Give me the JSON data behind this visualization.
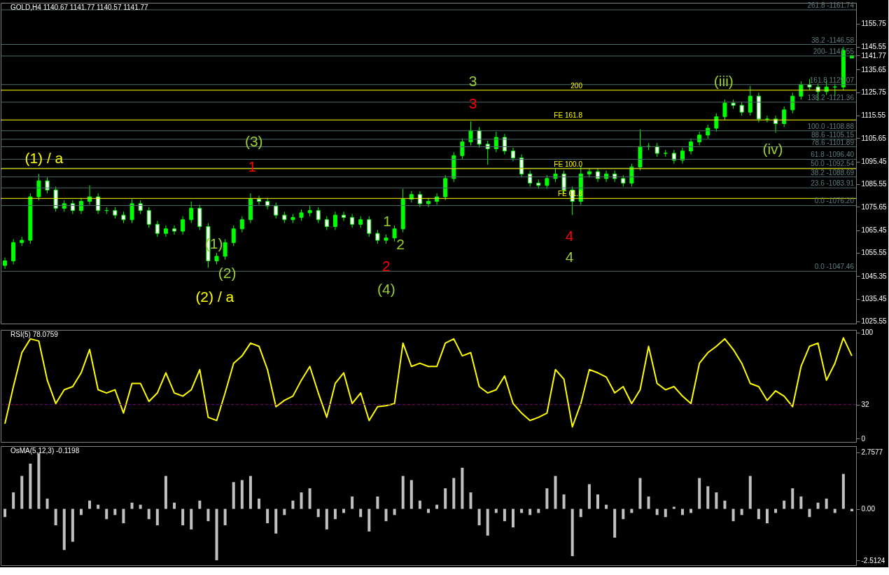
{
  "chart_data": [
    {
      "type": "candlestick",
      "title": "GOLD,H4  1140.67 1141.77 1140.57 1141.77",
      "color": "#00ff00",
      "tick_labels": "y",
      "grid": false,
      "categories": [
        null,
        null,
        null,
        null,
        null,
        null,
        null,
        null,
        null,
        null,
        null,
        null,
        null,
        null,
        null,
        null,
        null,
        null,
        null,
        null,
        null,
        null,
        null,
        null,
        null,
        null,
        null,
        null,
        null,
        null,
        null,
        null,
        null,
        null,
        null,
        null,
        null,
        null,
        null,
        null,
        null,
        null,
        null,
        null,
        null,
        null,
        null,
        null,
        null,
        null,
        null,
        null,
        null,
        null,
        null,
        null,
        null,
        null,
        null,
        null,
        null,
        null,
        null,
        null,
        null,
        null,
        null,
        null,
        null,
        null,
        null,
        null,
        null,
        null,
        null,
        null,
        null,
        null,
        null,
        null,
        null,
        null,
        null,
        null,
        null,
        null,
        null,
        null,
        null,
        null,
        null,
        null,
        null,
        null,
        null,
        null,
        null,
        null,
        null,
        null,
        null
      ],
      "ohlc": [
        [
          1050,
          1053.5,
          1048.5,
          1052
        ],
        [
          1052,
          1061.5,
          1050.5,
          1060
        ],
        [
          1060,
          1062.5,
          1058.5,
          1061
        ],
        [
          1061,
          1081.5,
          1059.5,
          1080
        ],
        [
          1080,
          1090,
          1078.5,
          1087
        ],
        [
          1087,
          1088.5,
          1081.5,
          1083
        ],
        [
          1083,
          1084.5,
          1073.5,
          1075
        ],
        [
          1075,
          1078.5,
          1073.5,
          1077
        ],
        [
          1077,
          1078.5,
          1072.5,
          1074
        ],
        [
          1074,
          1079.5,
          1072.5,
          1078
        ],
        [
          1078,
          1085,
          1076.5,
          1080
        ],
        [
          1080,
          1081.5,
          1072.5,
          1074
        ],
        [
          1074,
          1075.5,
          1072.5,
          1074
        ],
        [
          1074,
          1075.5,
          1070.5,
          1072
        ],
        [
          1072,
          1073.5,
          1068.5,
          1070
        ],
        [
          1070,
          1079,
          1068.5,
          1077
        ],
        [
          1077,
          1078.5,
          1072.5,
          1074
        ],
        [
          1074,
          1075.5,
          1066.5,
          1068
        ],
        [
          1068,
          1069.5,
          1062.5,
          1064
        ],
        [
          1064,
          1067.5,
          1062.5,
          1066
        ],
        [
          1066,
          1067.5,
          1063.5,
          1065
        ],
        [
          1065,
          1071.5,
          1063.5,
          1070
        ],
        [
          1070,
          1078,
          1068.5,
          1075
        ],
        [
          1075,
          1076.5,
          1065.5,
          1067
        ],
        [
          1067,
          1068.5,
          1049,
          1052
        ],
        [
          1052,
          1055.5,
          1050.5,
          1054
        ],
        [
          1054,
          1061.5,
          1052.5,
          1060
        ],
        [
          1060,
          1067.5,
          1058.5,
          1066
        ],
        [
          1066,
          1071.5,
          1064.5,
          1070
        ],
        [
          1070,
          1081.5,
          1068.5,
          1079
        ],
        [
          1079,
          1080.5,
          1076.5,
          1078
        ],
        [
          1078,
          1079.5,
          1074.5,
          1076
        ],
        [
          1076,
          1077.5,
          1070.5,
          1072
        ],
        [
          1072,
          1073.5,
          1068.5,
          1070
        ],
        [
          1070,
          1072.5,
          1068.5,
          1071
        ],
        [
          1071,
          1074.5,
          1069.5,
          1073
        ],
        [
          1073,
          1076,
          1071.5,
          1074
        ],
        [
          1074,
          1075.5,
          1068.5,
          1070
        ],
        [
          1070,
          1071.5,
          1065.5,
          1067
        ],
        [
          1067,
          1073.5,
          1065.5,
          1072
        ],
        [
          1072,
          1073.5,
          1069.5,
          1071
        ],
        [
          1071,
          1072.5,
          1066.5,
          1068
        ],
        [
          1068,
          1071.5,
          1066.5,
          1070
        ],
        [
          1070,
          1071.5,
          1062.5,
          1064
        ],
        [
          1064,
          1065.5,
          1059.5,
          1061
        ],
        [
          1061,
          1063.5,
          1059.5,
          1062
        ],
        [
          1062,
          1067.5,
          1060.5,
          1066
        ],
        [
          1066,
          1083.5,
          1064.5,
          1079
        ],
        [
          1079,
          1082.5,
          1077.5,
          1081
        ],
        [
          1081,
          1082.5,
          1075.5,
          1077
        ],
        [
          1077,
          1079.5,
          1075.5,
          1078
        ],
        [
          1078,
          1081.5,
          1076.5,
          1080
        ],
        [
          1080,
          1089.5,
          1078.5,
          1088
        ],
        [
          1088,
          1099.5,
          1086.5,
          1098
        ],
        [
          1098,
          1105.5,
          1096.5,
          1104
        ],
        [
          1104,
          1113,
          1102.5,
          1109
        ],
        [
          1109,
          1110.5,
          1101.5,
          1103
        ],
        [
          1103,
          1104.5,
          1094,
          1101
        ],
        [
          1101,
          1108.5,
          1099.5,
          1106
        ],
        [
          1106,
          1107.5,
          1098.5,
          1100
        ],
        [
          1100,
          1101.5,
          1095.5,
          1097
        ],
        [
          1097,
          1098.5,
          1088.5,
          1090
        ],
        [
          1090,
          1091.5,
          1084.5,
          1086
        ],
        [
          1086,
          1087.5,
          1083.5,
          1085
        ],
        [
          1085,
          1089.5,
          1083.5,
          1088
        ],
        [
          1088,
          1092.5,
          1086.5,
          1090
        ],
        [
          1090,
          1091.5,
          1081.5,
          1083
        ],
        [
          1083,
          1084.5,
          1072,
          1078
        ],
        [
          1078,
          1093.5,
          1076.5,
          1090
        ],
        [
          1090,
          1092.5,
          1088.5,
          1091
        ],
        [
          1091,
          1092.5,
          1086.5,
          1088
        ],
        [
          1088,
          1091.5,
          1086.5,
          1090
        ],
        [
          1090,
          1091.5,
          1086.5,
          1088
        ],
        [
          1088,
          1089.5,
          1084.5,
          1086
        ],
        [
          1086,
          1094.5,
          1084.5,
          1093
        ],
        [
          1093,
          1109.5,
          1091.5,
          1102
        ],
        [
          1102,
          1103.5,
          1100.5,
          1102
        ],
        [
          1102,
          1103.5,
          1097.5,
          1099
        ],
        [
          1099,
          1100.5,
          1097.5,
          1099
        ],
        [
          1099,
          1100.5,
          1094.5,
          1096
        ],
        [
          1096,
          1101.5,
          1094.5,
          1100
        ],
        [
          1100,
          1105.5,
          1098.5,
          1104
        ],
        [
          1104,
          1108.5,
          1102.5,
          1107
        ],
        [
          1107,
          1111.5,
          1105.5,
          1110
        ],
        [
          1110,
          1116.5,
          1108.5,
          1115
        ],
        [
          1115,
          1122.5,
          1113.5,
          1121
        ],
        [
          1121,
          1122.5,
          1118.5,
          1120
        ],
        [
          1120,
          1121.5,
          1115.5,
          1117
        ],
        [
          1117,
          1128.5,
          1115.5,
          1124
        ],
        [
          1124,
          1125.5,
          1112.5,
          1114
        ],
        [
          1114,
          1115.5,
          1112.5,
          1114
        ],
        [
          1114,
          1115.5,
          1108,
          1112
        ],
        [
          1112,
          1119.5,
          1110.5,
          1118
        ],
        [
          1118,
          1125.5,
          1116.5,
          1124
        ],
        [
          1124,
          1130.5,
          1122.5,
          1129
        ],
        [
          1129,
          1131.5,
          1126.5,
          1128
        ],
        [
          1128,
          1129.5,
          1122,
          1126
        ],
        [
          1126,
          1131,
          1124.5,
          1128
        ],
        [
          1128,
          1129.5,
          1124,
          1128
        ],
        [
          1128,
          1145.5,
          1126.5,
          1144
        ],
        [
          1140.67,
          1141.77,
          1140.57,
          1141.77
        ]
      ],
      "ylim": [
        1024.6,
        1164.8
      ],
      "yticks": [
        1155.75,
        1145.55,
        1135.65,
        1125.75,
        1115.55,
        1105.65,
        1095.45,
        1085.55,
        1075.65,
        1065.45,
        1055.55,
        1045.35,
        1035.45,
        1025.55,
        {
          "value": 1141.77,
          "label": "1141.77"
        }
      ],
      "ref_lines": [
        {
          "axis": "y",
          "value": 1161.74,
          "color": "#4f6b6b"
        },
        {
          "axis": "y",
          "value": 1146.58,
          "color": "#4f6b6b"
        },
        {
          "axis": "y",
          "value": 1141.55,
          "color": "#4f6b6b"
        },
        {
          "axis": "y",
          "value": 1129.07,
          "color": "#4f6b6b"
        },
        {
          "axis": "y",
          "value": 1121.36,
          "color": "#4f6b6b"
        },
        {
          "axis": "y",
          "value": 1108.88,
          "color": "#4f6b6b"
        },
        {
          "axis": "y",
          "value": 1105.15,
          "color": "#4f6b6b"
        },
        {
          "axis": "y",
          "value": 1101.89,
          "color": "#4f6b6b"
        },
        {
          "axis": "y",
          "value": 1096.4,
          "color": "#4f6b6b"
        },
        {
          "axis": "y",
          "value": 1092.54,
          "color": "#4f6b6b"
        },
        {
          "axis": "y",
          "value": 1088.69,
          "color": "#4f6b6b"
        },
        {
          "axis": "y",
          "value": 1083.91,
          "color": "#4f6b6b"
        },
        {
          "axis": "y",
          "value": 1076.2,
          "color": "#4f6b6b"
        },
        {
          "axis": "y",
          "value": 1047.46,
          "color": "#4f6b6b"
        },
        {
          "axis": "y",
          "value": 1126.6,
          "color": "#ffff00"
        },
        {
          "axis": "y",
          "value": 1113.6,
          "label": "FE 161.8",
          "color": "#ffff00"
        },
        {
          "axis": "y",
          "value": 1092.3,
          "label": "FE 100.0",
          "color": "#ffff00"
        },
        {
          "axis": "y",
          "value": 1079.3,
          "label": "FE 61.8",
          "color": "#ffff00"
        }
      ],
      "annotations": [
        "(1) / a",
        "(2) / a",
        "(1)",
        "(2)",
        "(3)",
        "1",
        "1",
        "2",
        "2",
        "(4)",
        "3",
        "3",
        "4",
        "4",
        "(iii)",
        "(iv)",
        {
          "text": "261.8 -1161.74",
          "y": 1161.74
        },
        {
          "text": "38.2 -1146.58",
          "y": 1146.58
        },
        {
          "text": "200- 1141.55",
          "y": 1141.55
        },
        {
          "text": "161.8 1129.07",
          "y": 1129.07
        },
        {
          "text": "138.2 -1121.36",
          "y": 1121.36
        },
        {
          "text": "100.0 -1108.88",
          "y": 1108.88
        },
        {
          "text": "88.6 -1105.15",
          "y": 1105.15
        },
        {
          "text": "78.6 -1101.89",
          "y": 1101.89
        },
        {
          "text": "61.8 -1096.40",
          "y": 1096.4
        },
        {
          "text": "50.0 -1092.54",
          "y": 1092.54
        },
        {
          "text": "38.2 -1088.69",
          "y": 1088.69
        },
        {
          "text": "23.6 -1083.91",
          "y": 1083.91
        },
        {
          "text": "0.0 -1076.20",
          "y": 1076.2
        },
        {
          "text": "0.0 -1047.46",
          "y": 1047.46
        },
        {
          "text": "200",
          "y": 1126.6
        }
      ]
    },
    {
      "type": "line",
      "title": "RSI(5) 78.0759",
      "tick_labels": "y",
      "grid": false,
      "categories": [
        null,
        null,
        null,
        null,
        null,
        null,
        null,
        null,
        null,
        null,
        null,
        null,
        null,
        null,
        null,
        null,
        null,
        null,
        null,
        null,
        null,
        null,
        null,
        null,
        null,
        null,
        null,
        null,
        null,
        null,
        null,
        null,
        null,
        null,
        null,
        null,
        null,
        null,
        null,
        null,
        null,
        null,
        null,
        null,
        null,
        null,
        null,
        null,
        null,
        null,
        null,
        null,
        null,
        null,
        null,
        null,
        null,
        null,
        null,
        null,
        null,
        null,
        null,
        null,
        null,
        null,
        null,
        null,
        null,
        null,
        null,
        null,
        null,
        null,
        null,
        null,
        null,
        null,
        null,
        null,
        null,
        null,
        null,
        null,
        null,
        null,
        null,
        null,
        null,
        null,
        null,
        null,
        null,
        null,
        null,
        null,
        null,
        null,
        null,
        null,
        null
      ],
      "series": [
        {
          "color": "#ffff00",
          "values": [
            14,
            49,
            81,
            94,
            92,
            55,
            33,
            46,
            49,
            62,
            84,
            46,
            43,
            46,
            24,
            52,
            52,
            35,
            43,
            62,
            43,
            40,
            46,
            65,
            20,
            17,
            43,
            71,
            78,
            90,
            87,
            65,
            30,
            36,
            40,
            55,
            68,
            43,
            20,
            52,
            62,
            33,
            43,
            17,
            30,
            31,
            33,
            90,
            68,
            71,
            68,
            68,
            90,
            94,
            78,
            81,
            49,
            43,
            46,
            59,
            33,
            24,
            17,
            20,
            24,
            65,
            56,
            11,
            33,
            65,
            62,
            58,
            43,
            49,
            33,
            46,
            87,
            52,
            46,
            49,
            40,
            33,
            71,
            81,
            87,
            94,
            84,
            71,
            52,
            49,
            36,
            45,
            40,
            30,
            68,
            87,
            90,
            55,
            71,
            95,
            78
          ]
        }
      ],
      "ylim": [
        -3.2,
        102.5
      ],
      "yticks": [
        100,
        32,
        0
      ],
      "ref_lines": [
        {
          "axis": "y",
          "value": 32,
          "color": "#800080",
          "line_style": "dashed"
        }
      ]
    },
    {
      "type": "bar",
      "title": "OsMA(5,12,3) -0.1198",
      "tick_labels": "y",
      "grid": false,
      "categories": [
        null,
        null,
        null,
        null,
        null,
        null,
        null,
        null,
        null,
        null,
        null,
        null,
        null,
        null,
        null,
        null,
        null,
        null,
        null,
        null,
        null,
        null,
        null,
        null,
        null,
        null,
        null,
        null,
        null,
        null,
        null,
        null,
        null,
        null,
        null,
        null,
        null,
        null,
        null,
        null,
        null,
        null,
        null,
        null,
        null,
        null,
        null,
        null,
        null,
        null,
        null,
        null,
        null,
        null,
        null,
        null,
        null,
        null,
        null,
        null,
        null,
        null,
        null,
        null,
        null,
        null,
        null,
        null,
        null,
        null,
        null,
        null,
        null,
        null,
        null,
        null,
        null,
        null,
        null,
        null,
        null,
        null,
        null,
        null,
        null,
        null,
        null,
        null,
        null,
        null,
        null,
        null,
        null,
        null,
        null,
        null,
        null,
        null,
        null,
        null,
        null
      ],
      "series": [
        {
          "color": "#c0c0c0",
          "values": [
            -0.4,
            0.8,
            1.6,
            2.2,
            2.7,
            0.5,
            -0.8,
            -2.0,
            -1.6,
            -0.3,
            0.4,
            0.2,
            -0.5,
            -0.3,
            -0.7,
            0.3,
            0.2,
            -0.5,
            -0.8,
            1.6,
            0.3,
            -0.8,
            -1.0,
            0.4,
            -0.6,
            -2.5,
            -0.8,
            1.3,
            1.4,
            1.6,
            0.5,
            -0.7,
            -1.2,
            -0.3,
            0.4,
            0.8,
            1.0,
            -0.4,
            -1.0,
            -0.5,
            -0.2,
            0.6,
            -0.4,
            -1.1,
            0.6,
            -0.6,
            -0.3,
            1.6,
            1.4,
            0.4,
            -0.2,
            0.2,
            1.0,
            1.5,
            2.0,
            0.8,
            -0.8,
            -1.3,
            -0.2,
            -0.6,
            -0.9,
            -0.2,
            -0.3,
            -0.2,
            1.0,
            1.6,
            0.7,
            -2.3,
            -0.4,
            1.2,
            0.7,
            0.2,
            -1.4,
            -0.5,
            -0.2,
            1.5,
            0.6,
            -0.3,
            -0.4,
            0.1,
            -0.3,
            -0.2,
            1.5,
            1.1,
            0.8,
            0.4,
            -0.6,
            -0.3,
            1.6,
            -0.5,
            -0.7,
            -0.2,
            0.4,
            1.0,
            0.6,
            -0.4,
            0.3,
            0.5,
            -0.2,
            1.7,
            -0.12
          ]
        }
      ],
      "ylim": [
        -2.74,
        3.05
      ],
      "yticks": [
        2.7577,
        {
          "value": 0,
          "label": "0.00"
        },
        -2.5124
      ]
    }
  ]
}
